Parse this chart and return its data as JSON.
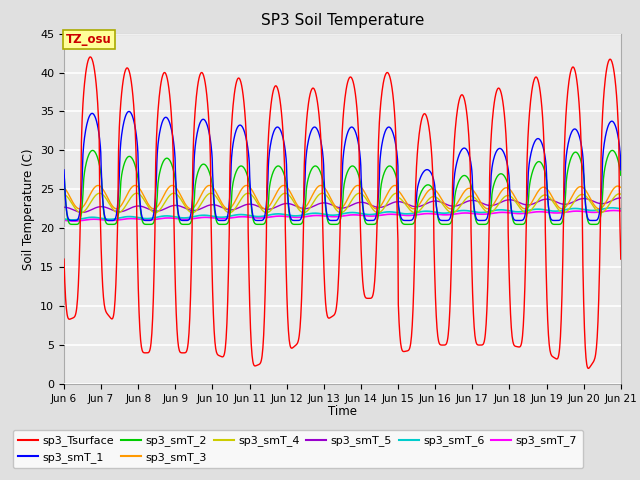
{
  "title": "SP3 Soil Temperature",
  "xlabel": "Time",
  "ylabel": "Soil Temperature (C)",
  "ylim": [
    0,
    45
  ],
  "yticks": [
    0,
    5,
    10,
    15,
    20,
    25,
    30,
    35,
    40,
    45
  ],
  "xtick_labels": [
    "Jun 6",
    "Jun 7",
    "Jun 8",
    "Jun 9",
    "Jun 10",
    "Jun 11",
    "Jun 12",
    "Jun 13",
    "Jun 14",
    "Jun 15",
    "Jun 16",
    "Jun 17",
    "Jun 18",
    "Jun 19",
    "Jun 20",
    "Jun 21"
  ],
  "tz_label": "TZ_osu",
  "fig_bg_color": "#e0e0e0",
  "plot_bg_color": "#ebebeb",
  "series_colors": {
    "sp3_Tsurface": "#ff0000",
    "sp3_smT_1": "#0000ff",
    "sp3_smT_2": "#00cc00",
    "sp3_smT_3": "#ff9900",
    "sp3_smT_4": "#cccc00",
    "sp3_smT_5": "#9900cc",
    "sp3_smT_6": "#00cccc",
    "sp3_smT_7": "#ff00ff"
  }
}
